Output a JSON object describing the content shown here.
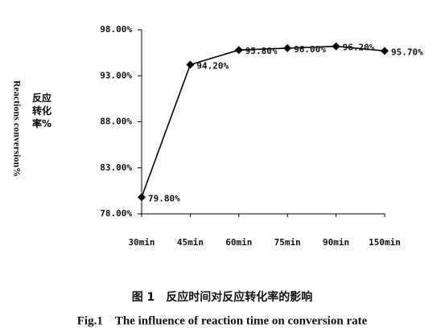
{
  "chart_data": {
    "type": "line",
    "y_label_cn": "反应转化率%",
    "y_label_en": "Reactions conversion%",
    "caption_cn": "图 1　反应时间对反应转化率的影响",
    "caption_en": "Fig.1　The influence of reaction time on conversion rate",
    "categories": [
      "30min",
      "45min",
      "60min",
      "75min",
      "90min",
      "150min"
    ],
    "values": [
      79.8,
      94.2,
      95.8,
      96.0,
      96.2,
      95.7
    ],
    "value_labels": [
      "79.80%",
      "94.20%",
      "95.80%",
      "96.00%",
      "96.20%",
      "95.70%"
    ],
    "color": "#000000",
    "ylim": [
      78,
      98
    ],
    "yticks": [
      {
        "value": 78,
        "label": "78.00%"
      },
      {
        "value": 83,
        "label": "83.00%"
      },
      {
        "value": 88,
        "label": "88.00%"
      },
      {
        "value": 93,
        "label": "93.00%"
      },
      {
        "value": 98,
        "label": "98.00%"
      }
    ]
  }
}
